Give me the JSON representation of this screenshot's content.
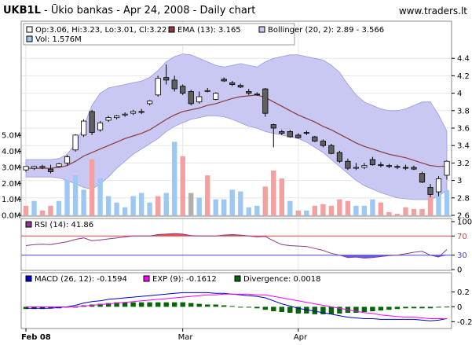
{
  "header": {
    "symbol": "UKB1L",
    "subtitle": " - Ūkio bankas - Apr 24, 2008 - Daily chart",
    "site": "www.traders.lt"
  },
  "colors": {
    "up_candle": "#ffffff",
    "down_candle": "#606060",
    "ema": "#8b3a3a",
    "bollinger_fill": "#c8c8f2",
    "bollinger_edge": "#9a9ae0",
    "vol_up": "#9ec8f4",
    "vol_down": "#f4a0a0",
    "vol_neutral": "#b0b0b0",
    "rsi_line": "#8b3a8b",
    "rsi_over": "#f05050",
    "rsi_under": "#6060f0",
    "macd": "#0000cc",
    "exp": "#ff00ff",
    "divergence": "#006600"
  },
  "chart_data": [
    {
      "type": "candlestick",
      "legend": {
        "ohlc": "Op:3.06, Hi:3.23, Lo:3.01, Cl:3.22",
        "ema": "EMA (13): 3.165",
        "bollinger": "Bollinger (20, 2): 2.89 - 3.566",
        "vol": "Vol: 1.576M"
      },
      "ylim": [
        2.6,
        4.6
      ],
      "yticks": [
        2.6,
        2.8,
        3,
        3.2,
        3.4,
        3.6,
        3.8,
        4,
        4.2,
        4.4
      ],
      "ytick_labels": [
        "2.6",
        "2.8",
        "3",
        "3.2",
        "3.4",
        "3.6",
        "3.8",
        "4",
        "4.2",
        "4.4"
      ],
      "vol_ylim": [
        0,
        5.6
      ],
      "vol_ticks": [
        0,
        1,
        2,
        3,
        4,
        5
      ],
      "vol_tick_labels": [
        "0.0M",
        "1.0M",
        "2.0M",
        "3.0M",
        "4.0M",
        "5.0M"
      ],
      "x_labels": [
        {
          "label": "Feb 08",
          "index": 0
        },
        {
          "label": "Mar",
          "index": 19
        },
        {
          "label": "Apr",
          "index": 33
        }
      ],
      "candles": [
        {
          "o": 3.12,
          "h": 3.16,
          "l": 3.1,
          "c": 3.16
        },
        {
          "o": 3.14,
          "h": 3.17,
          "l": 3.12,
          "c": 3.16
        },
        {
          "o": 3.15,
          "h": 3.18,
          "l": 3.13,
          "c": 3.16
        },
        {
          "o": 3.13,
          "h": 3.18,
          "l": 3.08,
          "c": 3.1
        },
        {
          "o": 3.16,
          "h": 3.2,
          "l": 3.15,
          "c": 3.19
        },
        {
          "o": 3.2,
          "h": 3.29,
          "l": 3.17,
          "c": 3.27
        },
        {
          "o": 3.35,
          "h": 3.53,
          "l": 3.33,
          "c": 3.52
        },
        {
          "o": 3.52,
          "h": 3.7,
          "l": 3.5,
          "c": 3.68
        },
        {
          "o": 3.79,
          "h": 3.81,
          "l": 3.52,
          "c": 3.55
        },
        {
          "o": 3.58,
          "h": 3.68,
          "l": 3.56,
          "c": 3.66
        },
        {
          "o": 3.69,
          "h": 3.74,
          "l": 3.67,
          "c": 3.72
        },
        {
          "o": 3.72,
          "h": 3.75,
          "l": 3.7,
          "c": 3.74
        },
        {
          "o": 3.75,
          "h": 3.78,
          "l": 3.73,
          "c": 3.76
        },
        {
          "o": 3.77,
          "h": 3.81,
          "l": 3.75,
          "c": 3.79
        },
        {
          "o": 3.79,
          "h": 3.82,
          "l": 3.76,
          "c": 3.78
        },
        {
          "o": 3.88,
          "h": 3.92,
          "l": 3.86,
          "c": 3.91
        },
        {
          "o": 3.98,
          "h": 4.2,
          "l": 3.96,
          "c": 4.17
        },
        {
          "o": 4.18,
          "h": 4.33,
          "l": 4.1,
          "c": 4.15
        },
        {
          "o": 4.15,
          "h": 4.2,
          "l": 4.02,
          "c": 4.05
        },
        {
          "o": 4.08,
          "h": 4.1,
          "l": 3.98,
          "c": 4.0
        },
        {
          "o": 4.02,
          "h": 4.04,
          "l": 3.86,
          "c": 3.88
        },
        {
          "o": 3.9,
          "h": 4.02,
          "l": 3.88,
          "c": 3.96
        },
        {
          "o": 4.03,
          "h": 4.06,
          "l": 4.01,
          "c": 4.03
        },
        {
          "o": 3.93,
          "h": 4.01,
          "l": 3.92,
          "c": 4.0
        },
        {
          "o": 4.16,
          "h": 4.18,
          "l": 4.13,
          "c": 4.14
        },
        {
          "o": 4.12,
          "h": 4.14,
          "l": 4.08,
          "c": 4.1
        },
        {
          "o": 4.09,
          "h": 4.11,
          "l": 4.06,
          "c": 4.07
        },
        {
          "o": 4.02,
          "h": 4.05,
          "l": 3.98,
          "c": 4.0
        },
        {
          "o": 3.99,
          "h": 4.01,
          "l": 3.97,
          "c": 3.98
        },
        {
          "o": 4.05,
          "h": 4.06,
          "l": 3.73,
          "c": 3.77
        },
        {
          "o": 3.64,
          "h": 3.65,
          "l": 3.38,
          "c": 3.6
        },
        {
          "o": 3.56,
          "h": 3.58,
          "l": 3.52,
          "c": 3.54
        },
        {
          "o": 3.56,
          "h": 3.58,
          "l": 3.49,
          "c": 3.5
        },
        {
          "o": 3.52,
          "h": 3.54,
          "l": 3.48,
          "c": 3.49
        },
        {
          "o": 3.55,
          "h": 3.57,
          "l": 3.52,
          "c": 3.54
        },
        {
          "o": 3.5,
          "h": 3.51,
          "l": 3.44,
          "c": 3.45
        },
        {
          "o": 3.45,
          "h": 3.47,
          "l": 3.38,
          "c": 3.4
        },
        {
          "o": 3.4,
          "h": 3.42,
          "l": 3.3,
          "c": 3.31
        },
        {
          "o": 3.32,
          "h": 3.34,
          "l": 3.2,
          "c": 3.22
        },
        {
          "o": 3.22,
          "h": 3.25,
          "l": 3.12,
          "c": 3.14
        },
        {
          "o": 3.14,
          "h": 3.2,
          "l": 3.12,
          "c": 3.15
        },
        {
          "o": 3.15,
          "h": 3.2,
          "l": 3.13,
          "c": 3.17
        },
        {
          "o": 3.24,
          "h": 3.27,
          "l": 3.17,
          "c": 3.18
        },
        {
          "o": 3.18,
          "h": 3.21,
          "l": 3.15,
          "c": 3.17
        },
        {
          "o": 3.17,
          "h": 3.19,
          "l": 3.14,
          "c": 3.16
        },
        {
          "o": 3.16,
          "h": 3.18,
          "l": 3.13,
          "c": 3.15
        },
        {
          "o": 3.15,
          "h": 3.18,
          "l": 3.12,
          "c": 3.14
        },
        {
          "o": 3.15,
          "h": 3.17,
          "l": 3.12,
          "c": 3.13
        },
        {
          "o": 3.08,
          "h": 3.1,
          "l": 2.97,
          "c": 2.98
        },
        {
          "o": 2.92,
          "h": 2.96,
          "l": 2.81,
          "c": 2.84
        },
        {
          "o": 2.87,
          "h": 3.05,
          "l": 2.82,
          "c": 3.02
        },
        {
          "o": 3.06,
          "h": 3.23,
          "l": 3.01,
          "c": 3.22
        }
      ],
      "ema": [
        3.14,
        3.14,
        3.14,
        3.14,
        3.15,
        3.17,
        3.22,
        3.28,
        3.32,
        3.36,
        3.4,
        3.44,
        3.48,
        3.51,
        3.54,
        3.58,
        3.64,
        3.7,
        3.75,
        3.79,
        3.81,
        3.83,
        3.86,
        3.88,
        3.91,
        3.94,
        3.96,
        3.97,
        3.98,
        3.95,
        3.9,
        3.85,
        3.8,
        3.75,
        3.71,
        3.67,
        3.62,
        3.58,
        3.53,
        3.48,
        3.43,
        3.39,
        3.36,
        3.33,
        3.3,
        3.28,
        3.26,
        3.23,
        3.2,
        3.17,
        3.16,
        3.165
      ],
      "bb_upper": [
        3.24,
        3.24,
        3.24,
        3.24,
        3.25,
        3.3,
        3.42,
        3.62,
        3.86,
        4.0,
        4.06,
        4.08,
        4.1,
        4.12,
        4.14,
        4.18,
        4.26,
        4.36,
        4.42,
        4.45,
        4.44,
        4.4,
        4.36,
        4.32,
        4.3,
        4.32,
        4.34,
        4.32,
        4.3,
        4.36,
        4.4,
        4.42,
        4.44,
        4.44,
        4.42,
        4.4,
        4.38,
        4.32,
        4.24,
        4.1,
        3.98,
        3.9,
        3.86,
        3.82,
        3.8,
        3.8,
        3.82,
        3.86,
        3.9,
        3.9,
        3.75,
        3.566
      ],
      "bb_lower": [
        3.04,
        3.04,
        3.04,
        3.04,
        3.03,
        3.0,
        2.96,
        2.92,
        2.9,
        2.96,
        3.04,
        3.14,
        3.22,
        3.3,
        3.36,
        3.42,
        3.48,
        3.56,
        3.62,
        3.66,
        3.7,
        3.72,
        3.74,
        3.74,
        3.73,
        3.7,
        3.66,
        3.62,
        3.6,
        3.56,
        3.54,
        3.52,
        3.5,
        3.48,
        3.44,
        3.38,
        3.32,
        3.24,
        3.16,
        3.08,
        3.0,
        2.94,
        2.9,
        2.86,
        2.83,
        2.8,
        2.79,
        2.78,
        2.78,
        2.78,
        2.82,
        2.89
      ],
      "volume": [
        0.6,
        0.9,
        0.3,
        0.6,
        0.9,
        2.2,
        2.5,
        1.6,
        3.5,
        2.3,
        1.2,
        0.8,
        0.5,
        1.2,
        1.4,
        0.8,
        1.2,
        1.4,
        4.6,
        3.7,
        1.4,
        1.1,
        2.5,
        1.0,
        1.0,
        1.6,
        1.5,
        0.5,
        0.6,
        1.8,
        2.8,
        2.3,
        0.9,
        0.3,
        0.3,
        0.6,
        0.7,
        0.6,
        1.0,
        0.9,
        0.6,
        0.6,
        1.0,
        0.8,
        0.2,
        0.1,
        0.5,
        0.4,
        0.4,
        1.2,
        1.8,
        1.576
      ],
      "volume_dir": [
        "d",
        "u",
        "d",
        "d",
        "u",
        "u",
        "u",
        "u",
        "d",
        "u",
        "u",
        "u",
        "u",
        "u",
        "u",
        "u",
        "d",
        "u",
        "u",
        "d",
        "d",
        "u",
        "d",
        "u",
        "u",
        "u",
        "u",
        "u",
        "u",
        "d",
        "d",
        "d",
        "u",
        "d",
        "u",
        "d",
        "d",
        "d",
        "d",
        "d",
        "u",
        "u",
        "u",
        "d",
        "d",
        "d",
        "d",
        "d",
        "d",
        "d",
        "u",
        "u"
      ]
    },
    {
      "type": "line",
      "legend": "RSI (14): 41.86",
      "ylim": [
        0,
        100
      ],
      "ticks": [
        0,
        30,
        70,
        100
      ],
      "tick_labels": [
        "0",
        "30",
        "70",
        "100"
      ],
      "levels": [
        30,
        70
      ],
      "values": [
        50,
        52,
        53,
        52,
        55,
        58,
        63,
        66,
        60,
        62,
        64,
        66,
        68,
        70,
        70,
        70,
        73,
        74,
        75,
        74,
        71,
        70,
        70,
        70,
        72,
        73,
        72,
        70,
        68,
        69,
        60,
        52,
        50,
        49,
        48,
        44,
        40,
        34,
        30,
        25,
        26,
        24,
        25,
        27,
        29,
        30,
        33,
        36,
        38,
        30,
        26,
        41.86
      ]
    },
    {
      "type": "line",
      "legend": {
        "macd": "MACD (26, 12): -0.1594",
        "exp": "EXP (9): -0.1612",
        "divergence": "Divergence: 0.0018"
      },
      "ylim": [
        -0.25,
        0.3
      ],
      "ticks": [
        -0.2,
        0,
        0.2
      ],
      "tick_labels": [
        "-0.2",
        "0",
        "0.2"
      ],
      "macd": [
        -0.02,
        -0.02,
        -0.02,
        -0.02,
        -0.01,
        0.0,
        0.02,
        0.05,
        0.07,
        0.08,
        0.1,
        0.11,
        0.12,
        0.13,
        0.14,
        0.15,
        0.16,
        0.17,
        0.18,
        0.19,
        0.19,
        0.19,
        0.19,
        0.18,
        0.18,
        0.17,
        0.16,
        0.15,
        0.14,
        0.12,
        0.08,
        0.04,
        0.01,
        -0.02,
        -0.04,
        -0.06,
        -0.08,
        -0.1,
        -0.12,
        -0.14,
        -0.15,
        -0.16,
        -0.16,
        -0.17,
        -0.17,
        -0.17,
        -0.17,
        -0.17,
        -0.18,
        -0.19,
        -0.18,
        -0.1594
      ],
      "exp": [
        0.0,
        0.0,
        0.0,
        0.0,
        0.0,
        0.0,
        0.0,
        0.01,
        0.02,
        0.03,
        0.04,
        0.05,
        0.06,
        0.07,
        0.08,
        0.09,
        0.1,
        0.11,
        0.12,
        0.13,
        0.14,
        0.15,
        0.16,
        0.16,
        0.17,
        0.17,
        0.17,
        0.17,
        0.16,
        0.16,
        0.14,
        0.12,
        0.1,
        0.08,
        0.06,
        0.04,
        0.02,
        0.0,
        -0.02,
        -0.04,
        -0.06,
        -0.08,
        -0.09,
        -0.11,
        -0.12,
        -0.13,
        -0.14,
        -0.14,
        -0.15,
        -0.16,
        -0.16,
        -0.1612
      ],
      "divergence": [
        -0.03,
        -0.03,
        -0.03,
        -0.02,
        -0.02,
        -0.01,
        0.0,
        0.02,
        0.03,
        0.04,
        0.05,
        0.06,
        0.06,
        0.06,
        0.06,
        0.06,
        0.06,
        0.06,
        0.06,
        0.06,
        0.05,
        0.04,
        0.03,
        0.03,
        0.02,
        0.01,
        0.0,
        -0.01,
        -0.02,
        -0.04,
        -0.06,
        -0.07,
        -0.08,
        -0.09,
        -0.09,
        -0.1,
        -0.1,
        -0.1,
        -0.09,
        -0.08,
        -0.08,
        -0.07,
        -0.06,
        -0.05,
        -0.04,
        -0.03,
        -0.02,
        -0.02,
        -0.02,
        -0.02,
        -0.01,
        0.0018
      ]
    }
  ]
}
